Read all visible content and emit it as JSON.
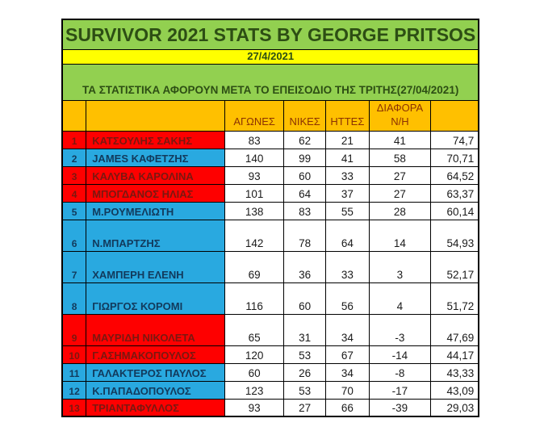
{
  "title": "SURVIVOR 2021 STATS BY GEORGE PRITSOS",
  "date": "27/4/2021",
  "subtitle": "ΤΑ ΣΤΑΤΙΣΤΙΚΑ ΑΦΟΡΟΥΝ ΜΕΤΑ ΤΟ ΕΠΕΙΣΟΔΙΟ ΤΗΣ ΤΡΙΤΗΣ(27/04/2021)",
  "columns": {
    "games": "ΑΓΩΝΕΣ",
    "wins": "ΝΙΚΕΣ",
    "losses": "ΗΤΤΕΣ",
    "diff_line1": "ΔΙΑΦΟΡΑ",
    "diff_line2": "Ν/Η"
  },
  "colors": {
    "banner_green": "#92D050",
    "banner_yellow": "#FFFF00",
    "header_orange": "#FFC000",
    "row_red": "#FE0000",
    "row_blue": "#29A9E0",
    "title_text": "#2d4e14",
    "header_text": "#8b3103"
  },
  "rows": [
    {
      "rank": "1",
      "name": "ΚΑΤΣΟΥΛΗΣ ΣΑΚΗΣ",
      "games": "83",
      "wins": "62",
      "losses": "21",
      "diff": "41",
      "pct": "74,7",
      "color": "red",
      "tall": false
    },
    {
      "rank": "2",
      "name": "JAMES ΚΑΦΕΤΖΗΣ",
      "games": "140",
      "wins": "99",
      "losses": "41",
      "diff": "58",
      "pct": "70,71",
      "color": "blue",
      "tall": false
    },
    {
      "rank": "3",
      "name": "ΚΑΛΥΒΑ ΚΑΡΟΛΙΝΑ",
      "games": "93",
      "wins": "60",
      "losses": "33",
      "diff": "27",
      "pct": "64,52",
      "color": "red",
      "tall": false
    },
    {
      "rank": "4",
      "name": "ΜΠΟΓΔΑΝΟΣ ΗΛΙΑΣ",
      "games": "101",
      "wins": "64",
      "losses": "37",
      "diff": "27",
      "pct": "63,37",
      "color": "red",
      "tall": false
    },
    {
      "rank": "5",
      "name": "Μ.ΡΟΥΜΕΛΙΩΤΗ",
      "games": "138",
      "wins": "83",
      "losses": "55",
      "diff": "28",
      "pct": "60,14",
      "color": "blue",
      "tall": false
    },
    {
      "rank": "6",
      "name": "Ν.ΜΠΑΡΤΖΗΣ",
      "games": "142",
      "wins": "78",
      "losses": "64",
      "diff": "14",
      "pct": "54,93",
      "color": "blue",
      "tall": true
    },
    {
      "rank": "7",
      "name": "ΧΑΜΠΕΡΗ ΕΛΕΝΗ",
      "games": "69",
      "wins": "36",
      "losses": "33",
      "diff": "3",
      "pct": "52,17",
      "color": "blue",
      "tall": true
    },
    {
      "rank": "8",
      "name": "ΓΙΩΡΓΟΣ ΚΟΡΟΜΙ",
      "games": "116",
      "wins": "60",
      "losses": "56",
      "diff": "4",
      "pct": "51,72",
      "color": "blue",
      "tall": true
    },
    {
      "rank": "9",
      "name": "ΜΑΥΡΙΔΗ ΝΙΚΟΛΕΤΑ",
      "games": "65",
      "wins": "31",
      "losses": "34",
      "diff": "-3",
      "pct": "47,69",
      "color": "red",
      "tall": true
    },
    {
      "rank": "10",
      "name": "Γ.ΑΣΗΜΑΚΟΠΟΥΛΟΣ",
      "games": "120",
      "wins": "53",
      "losses": "67",
      "diff": "-14",
      "pct": "44,17",
      "color": "red",
      "tall": false
    },
    {
      "rank": "11",
      "name": "ΓΑΛΑΚΤΕΡΟΣ ΠΑΥΛΟΣ",
      "games": "60",
      "wins": "26",
      "losses": "34",
      "diff": "-8",
      "pct": "43,33",
      "color": "blue",
      "tall": false
    },
    {
      "rank": "12",
      "name": "Κ.ΠΑΠΑΔΟΠΟΥΛΟΣ",
      "games": "123",
      "wins": "53",
      "losses": "70",
      "diff": "-17",
      "pct": "43,09",
      "color": "blue",
      "tall": false
    },
    {
      "rank": "13",
      "name": "ΤΡΙΑΝΤΑΦΥΛΛΟΣ",
      "games": "93",
      "wins": "27",
      "losses": "66",
      "diff": "-39",
      "pct": "29,03",
      "color": "red",
      "tall": false
    }
  ]
}
